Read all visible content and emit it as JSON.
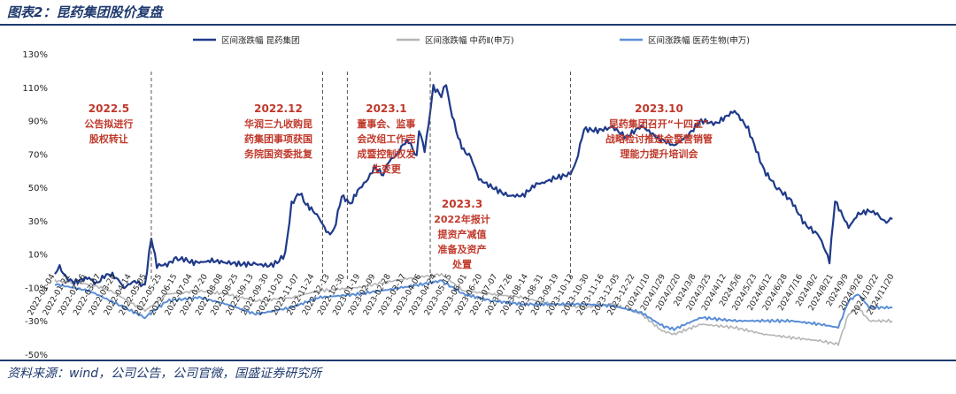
{
  "figure_title": "图表2：昆药集团股价复盘",
  "source_note": "资料来源：wind，公司公告，公司官微，国盛证券研究所",
  "chart_data": {
    "type": "line",
    "title": "",
    "xlabel": "",
    "ylabel": "",
    "ylim": [
      -50,
      130
    ],
    "yticks": [
      130,
      110,
      90,
      70,
      50,
      30,
      10,
      -10,
      -30,
      -50
    ],
    "ytick_suffix": "%",
    "x_range": [
      "2022-01-04",
      "2024-11-22"
    ],
    "x_tick_labels": [
      "2022-01-04",
      "2022-01-21",
      "2022-02-16",
      "2022-03-07",
      "2022-03-24",
      "2022-04-14",
      "2022-05-05",
      "2022-05-25",
      "2022-06-15",
      "2022-07-04",
      "2022-07-20",
      "2022-08-08",
      "2022-08-25",
      "2022-09-13",
      "2022-09-30",
      "2022-10-20",
      "2022-11-07",
      "2022-11-24",
      "2022-12-13",
      "2022-12-30",
      "2023-01-19",
      "2023-02-09",
      "2023-02-28",
      "2023-03-17",
      "2023-04-06",
      "2023-04-24",
      "2023-05-15",
      "2023-06-01",
      "2023-06-20",
      "2023-07-07",
      "2023-07-26",
      "2023-08-14",
      "2023-08-31",
      "2023-09-19",
      "2023-10-13",
      "2023-10-30",
      "2023-11-16",
      "2023-12-05",
      "2023-12-22",
      "2024/1/10",
      "2024/1/29",
      "2024/2/20",
      "2024/3/8",
      "2024/3/25",
      "2024/4/12",
      "2024/5/6",
      "2024/5/23",
      "2024/6/12",
      "2024/6/28",
      "2024/7/16",
      "2024/8/2",
      "2024/8/21",
      "2024/9/9",
      "2024/9/26",
      "2024/10/22",
      "2024/11/20"
    ],
    "legend": [
      "区间涨跌幅 昆药集团",
      "区间涨跌幅 中药Ⅱ(申万)",
      "区间涨跌幅 医药生物(申万)"
    ],
    "legend_position": "top",
    "colors": {
      "kunyao": "#1f3a8a",
      "tcm": "#b5b5b5",
      "pharma": "#5b8ed6",
      "annotation": "#c0392b"
    },
    "series": [
      {
        "name": "区间涨跌幅 昆药集团",
        "x": [
          "2022-01-04",
          "2022-01-10",
          "2022-01-17",
          "2022-01-21",
          "2022-01-28",
          "2022-02-16",
          "2022-02-25",
          "2022-03-07",
          "2022-03-15",
          "2022-03-24",
          "2022-04-01",
          "2022-04-14",
          "2022-04-22",
          "2022-04-27",
          "2022-05-05",
          "2022-05-12",
          "2022-05-25",
          "2022-06-05",
          "2022-06-15",
          "2022-06-25",
          "2022-07-04",
          "2022-07-20",
          "2022-08-08",
          "2022-08-25",
          "2022-09-13",
          "2022-09-30",
          "2022-10-10",
          "2022-10-20",
          "2022-10-28",
          "2022-11-07",
          "2022-11-15",
          "2022-11-24",
          "2022-12-01",
          "2022-12-13",
          "2022-12-20",
          "2022-12-30",
          "2023-01-10",
          "2023-01-19",
          "2023-02-01",
          "2023-02-09",
          "2023-02-20",
          "2023-02-28",
          "2023-03-10",
          "2023-03-17",
          "2023-03-24",
          "2023-04-03",
          "2023-04-06",
          "2023-04-13",
          "2023-04-18",
          "2023-04-24",
          "2023-05-04",
          "2023-05-10",
          "2023-05-15",
          "2023-05-25",
          "2023-06-01",
          "2023-06-10",
          "2023-06-20",
          "2023-07-07",
          "2023-07-26",
          "2023-08-14",
          "2023-08-31",
          "2023-09-10",
          "2023-09-19",
          "2023-10-13",
          "2023-10-20",
          "2023-10-30",
          "2023-11-16",
          "2023-12-05",
          "2023-12-22",
          "2024-01-10",
          "2024-01-29",
          "2024-02-20",
          "2024-03-08",
          "2024-03-25",
          "2024-04-12",
          "2024-05-06",
          "2024-05-23",
          "2024-06-12",
          "2024-06-28",
          "2024-07-16",
          "2024-08-02",
          "2024-08-15",
          "2024-08-21",
          "2024-09-02",
          "2024-09-09",
          "2024-09-26",
          "2024-10-08",
          "2024-10-22",
          "2024-11-01",
          "2024-11-10",
          "2024-11-20"
        ],
        "values": [
          -2,
          2,
          -3,
          -5,
          -7,
          -4,
          -8,
          -3,
          -2,
          -5,
          -10,
          -6,
          -8,
          -9,
          20,
          3,
          4,
          7,
          7,
          5,
          5,
          6,
          5,
          4,
          4,
          3,
          5,
          10,
          40,
          47,
          40,
          36,
          32,
          22,
          24,
          45,
          40,
          48,
          55,
          62,
          58,
          66,
          70,
          76,
          78,
          68,
          85,
          72,
          88,
          110,
          105,
          112,
          98,
          80,
          72,
          68,
          55,
          50,
          45,
          45,
          52,
          53,
          55,
          58,
          65,
          85,
          84,
          86,
          80,
          87,
          80,
          75,
          81,
          90,
          88,
          96,
          85,
          60,
          50,
          42,
          28,
          23,
          20,
          6,
          42,
          26,
          34,
          36,
          34,
          29,
          31
        ]
      },
      {
        "name": "区间涨跌幅 中药Ⅱ(申万)",
        "x": [
          "2022-01-04",
          "2022-02-16",
          "2022-03-15",
          "2022-04-27",
          "2022-05-25",
          "2022-07-04",
          "2022-08-08",
          "2022-09-13",
          "2022-10-28",
          "2022-12-01",
          "2023-01-19",
          "2023-03-17",
          "2023-05-04",
          "2023-06-01",
          "2023-07-07",
          "2023-08-14",
          "2023-09-19",
          "2023-10-30",
          "2023-12-05",
          "2024-01-10",
          "2024-02-05",
          "2024-02-20",
          "2024-03-25",
          "2024-05-06",
          "2024-06-12",
          "2024-07-16",
          "2024-08-21",
          "2024-09-13",
          "2024-09-26",
          "2024-10-08",
          "2024-10-22",
          "2024-11-20"
        ],
        "values": [
          -6,
          -8,
          -12,
          -24,
          -14,
          -12,
          -14,
          -18,
          -16,
          -12,
          -10,
          -5,
          -2,
          -12,
          -14,
          -16,
          -20,
          -22,
          -20,
          -26,
          -36,
          -38,
          -32,
          -34,
          -38,
          -40,
          -42,
          -44,
          -26,
          -22,
          -30,
          -30
        ]
      },
      {
        "name": "区间涨跌幅 医药生物(申万)",
        "x": [
          "2022-01-04",
          "2022-02-16",
          "2022-03-15",
          "2022-04-27",
          "2022-05-25",
          "2022-07-04",
          "2022-08-08",
          "2022-09-13",
          "2022-10-28",
          "2022-12-01",
          "2023-01-19",
          "2023-03-17",
          "2023-05-04",
          "2023-06-01",
          "2023-07-07",
          "2023-08-14",
          "2023-09-19",
          "2023-10-30",
          "2023-12-05",
          "2024-01-10",
          "2024-02-05",
          "2024-02-20",
          "2024-03-25",
          "2024-05-06",
          "2024-06-12",
          "2024-07-16",
          "2024-08-21",
          "2024-09-13",
          "2024-09-26",
          "2024-10-08",
          "2024-10-22",
          "2024-11-20"
        ],
        "values": [
          -8,
          -12,
          -18,
          -28,
          -18,
          -16,
          -20,
          -26,
          -22,
          -16,
          -14,
          -10,
          -6,
          -14,
          -18,
          -20,
          -20,
          -20,
          -21,
          -25,
          -33,
          -35,
          -28,
          -30,
          -30,
          -30,
          -32,
          -34,
          -18,
          -14,
          -22,
          -22
        ]
      }
    ],
    "event_lines": [
      {
        "date": "2022-05-05",
        "label_date": "2022.5",
        "label_lines": [
          "公告拟进行",
          "股权转让"
        ],
        "label_anchor_y": 95
      },
      {
        "date": "2022-12-06",
        "label_date": "2022.12",
        "label_lines": [
          "华润三九收购昆",
          "药集团事项获国",
          "务院国资委批复"
        ],
        "label_anchor_y": 95
      },
      {
        "date": "2023-01-06",
        "label_date": "2023.1",
        "label_lines": [
          "董事会、监事",
          "会改组工作完",
          "成暨控制权发",
          "生变更"
        ],
        "label_anchor_y": 95
      },
      {
        "date": "2023-04-20",
        "label_date": "2023.3",
        "label_lines": [
          "2022年报计",
          "提资产减值",
          "准备及资产",
          "处置"
        ],
        "label_anchor_y": 38
      },
      {
        "date": "2023-10-13",
        "label_date": "2023.10",
        "label_lines": [
          "昆药集团召开“十四五”",
          "战略检讨推进会暨营销管",
          "理能力提升培训会"
        ],
        "label_anchor_y": 95
      }
    ]
  }
}
